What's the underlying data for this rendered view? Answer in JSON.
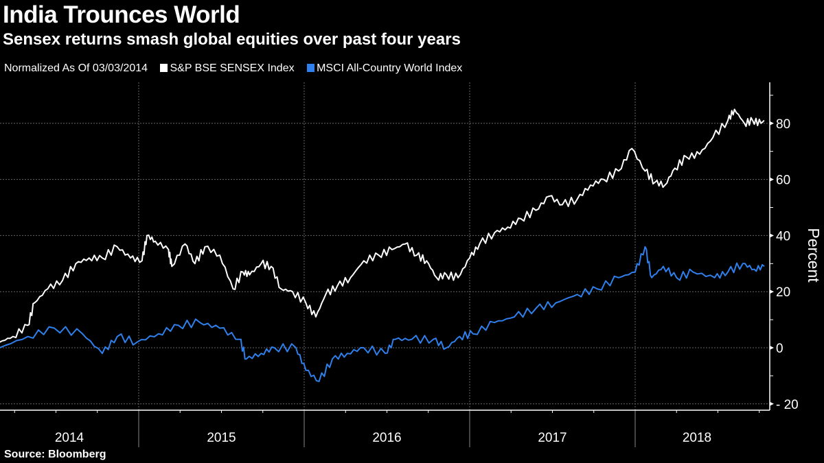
{
  "chart_data": {
    "type": "line",
    "title": "India Trounces World",
    "subtitle": "Sensex returns smash global equities over past four years",
    "note": "Normalized As Of 03/03/2014",
    "source": "Source:  Bloomberg",
    "ylabel": "Percent",
    "xlabel": "",
    "ylim": [
      -22,
      95
    ],
    "xlim": [
      2014.16,
      2018.82
    ],
    "yticks": [
      80,
      60,
      40,
      20,
      0,
      -20
    ],
    "xticks": [
      "2014",
      "2015",
      "2016",
      "2017",
      "2018"
    ],
    "year_boundaries": [
      2015,
      2016,
      2017,
      2018
    ],
    "grid": true,
    "legend_position": "top-left",
    "series": [
      {
        "name": "S&P BSE SENSEX Index",
        "color": "#ffffff",
        "x": [
          2014.16,
          2014.24,
          2014.33,
          2014.37,
          2014.45,
          2014.54,
          2014.62,
          2014.7,
          2014.78,
          2014.87,
          2014.95,
          2015.02,
          2015.05,
          2015.1,
          2015.18,
          2015.2,
          2015.28,
          2015.34,
          2015.4,
          2015.49,
          2015.57,
          2015.63,
          2015.67,
          2015.74,
          2015.8,
          2015.86,
          2015.93,
          2016.01,
          2016.07,
          2016.13,
          2016.2,
          2016.28,
          2016.36,
          2016.45,
          2016.53,
          2016.61,
          2016.68,
          2016.74,
          2016.8,
          2016.86,
          2016.93,
          2017.0,
          2017.06,
          2017.15,
          2017.23,
          2017.31,
          2017.4,
          2017.48,
          2017.56,
          2017.65,
          2017.73,
          2017.81,
          2017.9,
          2017.98,
          2018.06,
          2018.12,
          2018.18,
          2018.24,
          2018.31,
          2018.39,
          2018.47,
          2018.56,
          2018.6,
          2018.66,
          2018.71,
          2018.76,
          2018.78
        ],
        "values": [
          2,
          4,
          8,
          16,
          21,
          24,
          30,
          32,
          32,
          36,
          32,
          31,
          40,
          38,
          35,
          29,
          37,
          30,
          36,
          33,
          21,
          27,
          26,
          30,
          29,
          21,
          20,
          16,
          11,
          19,
          22,
          25,
          31,
          33,
          35,
          37,
          33,
          31,
          25,
          26,
          25,
          32,
          37,
          41,
          43,
          46,
          49,
          54,
          51,
          53,
          58,
          60,
          63,
          71,
          63,
          59,
          58,
          64,
          68,
          69,
          75,
          81,
          85,
          80,
          81,
          80,
          81
        ]
      },
      {
        "name": "MSCI All-Country World Index",
        "color": "#2f80ed",
        "x": [
          2014.16,
          2014.33,
          2014.49,
          2014.66,
          2014.78,
          2014.87,
          2014.99,
          2015.12,
          2015.24,
          2015.37,
          2015.49,
          2015.61,
          2015.65,
          2015.74,
          2015.82,
          2015.95,
          2016.01,
          2016.09,
          2016.17,
          2016.26,
          2016.36,
          2016.49,
          2016.55,
          2016.65,
          2016.78,
          2016.86,
          2016.94,
          2017.02,
          2017.15,
          2017.27,
          2017.4,
          2017.52,
          2017.65,
          2017.77,
          2017.9,
          2018.0,
          2018.06,
          2018.1,
          2018.17,
          2018.25,
          2018.35,
          2018.48,
          2018.56,
          2018.65,
          2018.72,
          2018.78
        ],
        "values": [
          0,
          4,
          7,
          5,
          -2,
          4,
          2,
          5,
          8,
          9,
          7,
          3,
          -4,
          -2,
          0,
          0,
          -8,
          -12,
          -4,
          -2,
          0,
          -2,
          3,
          3,
          3,
          0,
          4,
          5,
          9,
          11,
          14,
          16,
          19,
          21,
          25,
          27,
          36,
          25,
          29,
          25,
          27,
          25,
          27,
          30,
          28,
          29
        ]
      }
    ]
  }
}
